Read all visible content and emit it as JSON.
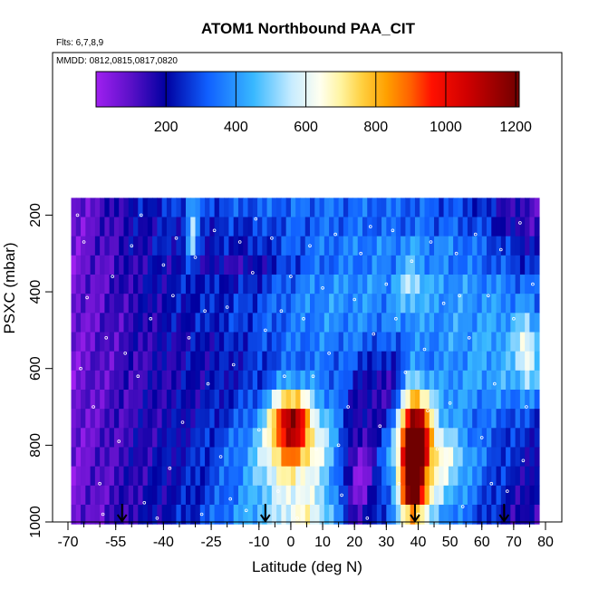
{
  "chart_data": {
    "type": "heatmap",
    "title": "ATOM1 Northbound PAA_CIT",
    "flights_label": "Flts: 6,7,8,9",
    "dates_label": "MMDD: 0812,0815,0817,0820",
    "xlabel": "Latitude (deg N)",
    "ylabel": "PSXC (mbar)",
    "xlim": [
      -70,
      80
    ],
    "ylim": [
      1000,
      140
    ],
    "y_reversed": true,
    "x_ticks": [
      -70,
      -55,
      -40,
      -25,
      -10,
      0,
      10,
      20,
      30,
      40,
      50,
      60,
      70,
      80
    ],
    "x_tick_labels": [
      "-70",
      "-55",
      "-40",
      "-25",
      "-10",
      "0",
      "10",
      "20",
      "30",
      "40",
      "50",
      "60",
      "70",
      "80"
    ],
    "x_minor_step": 5,
    "y_ticks": [
      200,
      400,
      600,
      800,
      1000
    ],
    "y_tick_labels": [
      "200",
      "400",
      "600",
      "800",
      "1000"
    ],
    "colorbar": {
      "range": [
        0,
        1210
      ],
      "ticks": [
        200,
        400,
        600,
        800,
        1000,
        1200
      ],
      "tick_labels": [
        "200",
        "400",
        "600",
        "800",
        "1000",
        "1200"
      ],
      "stops": [
        [
          0,
          "#a020f0"
        ],
        [
          100,
          "#5a10c8"
        ],
        [
          200,
          "#0000a0"
        ],
        [
          320,
          "#1060ff"
        ],
        [
          450,
          "#38b8ff"
        ],
        [
          560,
          "#c8ecff"
        ],
        [
          640,
          "#fffff0"
        ],
        [
          700,
          "#fff4a0"
        ],
        [
          760,
          "#ffd040"
        ],
        [
          830,
          "#ffa000"
        ],
        [
          900,
          "#ff6000"
        ],
        [
          960,
          "#ff1000"
        ],
        [
          1060,
          "#d00000"
        ],
        [
          1210,
          "#700000"
        ]
      ]
    },
    "bin_pressures": [
      180,
      230,
      280,
      330,
      380,
      430,
      480,
      530,
      580,
      630,
      680,
      730,
      780,
      830,
      880,
      930,
      980
    ],
    "lat_range": [
      -69,
      78
    ],
    "background_profile": {
      "lat": [
        -69,
        -60,
        -50,
        -40,
        -30,
        -20,
        -10,
        0,
        10,
        20,
        30,
        40,
        50,
        60,
        70,
        78
      ],
      "values": [
        [
          60,
          120,
          200,
          250,
          280,
          300,
          320,
          330,
          340,
          330,
          330,
          320,
          300,
          250,
          150,
          120
        ],
        [
          60,
          110,
          180,
          220,
          250,
          280,
          300,
          320,
          330,
          330,
          320,
          330,
          320,
          280,
          160,
          140
        ],
        [
          60,
          110,
          180,
          230,
          270,
          300,
          320,
          340,
          350,
          360,
          370,
          380,
          370,
          320,
          240,
          200
        ],
        [
          60,
          100,
          160,
          200,
          240,
          270,
          300,
          320,
          340,
          350,
          360,
          360,
          360,
          330,
          280,
          240
        ],
        [
          60,
          100,
          170,
          210,
          260,
          300,
          330,
          360,
          380,
          390,
          390,
          400,
          400,
          380,
          350,
          300
        ],
        [
          60,
          100,
          160,
          200,
          240,
          280,
          320,
          360,
          390,
          390,
          380,
          390,
          400,
          400,
          380,
          340
        ],
        [
          60,
          100,
          150,
          190,
          230,
          260,
          300,
          340,
          380,
          380,
          380,
          380,
          400,
          410,
          420,
          380
        ],
        [
          60,
          100,
          150,
          180,
          200,
          230,
          280,
          340,
          360,
          360,
          350,
          360,
          400,
          420,
          440,
          400
        ],
        [
          60,
          100,
          140,
          170,
          200,
          220,
          260,
          320,
          340,
          330,
          330,
          340,
          380,
          420,
          430,
          400
        ],
        [
          60,
          100,
          140,
          170,
          200,
          220,
          260,
          340,
          360,
          300,
          300,
          360,
          400,
          420,
          420,
          380
        ],
        [
          60,
          100,
          140,
          180,
          200,
          240,
          300,
          380,
          380,
          280,
          300,
          420,
          400,
          380,
          360,
          320
        ],
        [
          60,
          100,
          150,
          180,
          220,
          260,
          340,
          420,
          420,
          300,
          330,
          470,
          380,
          340,
          300,
          260
        ],
        [
          60,
          100,
          150,
          190,
          230,
          300,
          380,
          470,
          450,
          320,
          360,
          520,
          420,
          320,
          260,
          220
        ],
        [
          60,
          100,
          160,
          200,
          240,
          320,
          400,
          500,
          460,
          300,
          380,
          540,
          480,
          340,
          240,
          200
        ],
        [
          60,
          100,
          160,
          200,
          240,
          320,
          420,
          480,
          430,
          280,
          350,
          500,
          440,
          320,
          220,
          180
        ],
        [
          60,
          100,
          160,
          200,
          240,
          330,
          430,
          470,
          420,
          260,
          330,
          470,
          400,
          300,
          200,
          160
        ],
        [
          60,
          100,
          170,
          210,
          260,
          360,
          450,
          460,
          400,
          260,
          320,
          440,
          360,
          280,
          180,
          150
        ]
      ]
    },
    "plumes": [
      {
        "lat": 0,
        "p": 730,
        "amp": 620,
        "sx": 4.2,
        "sp": 50
      },
      {
        "lat": 0,
        "p": 820,
        "amp": 300,
        "sx": 7,
        "sp": 70
      },
      {
        "lat": 38,
        "p": 820,
        "amp": 780,
        "sx": 2.8,
        "sp": 110
      },
      {
        "lat": 41,
        "p": 760,
        "amp": 300,
        "sx": 3,
        "sp": 70
      },
      {
        "lat": 39,
        "p": 930,
        "amp": 300,
        "sx": 3,
        "sp": 40
      },
      {
        "lat": 45,
        "p": 850,
        "amp": 160,
        "sx": 6,
        "sp": 80
      },
      {
        "lat": -31,
        "p": 240,
        "amp": 300,
        "sx": 1.2,
        "sp": 60
      },
      {
        "lat": 38,
        "p": 380,
        "amp": 150,
        "sx": 3,
        "sp": 50
      },
      {
        "lat": 74,
        "p": 560,
        "amp": 250,
        "sx": 2,
        "sp": 60
      },
      {
        "lat": 5,
        "p": 980,
        "amp": 200,
        "sx": 6,
        "sp": 40
      }
    ],
    "lulls": [
      {
        "lat": 22,
        "p": 860,
        "amp": 260,
        "sx": 4,
        "sp": 100
      },
      {
        "lat": 30,
        "p": 650,
        "amp": 150,
        "sx": 6,
        "sp": 80
      },
      {
        "lat": -15,
        "p": 330,
        "amp": 120,
        "sx": 10,
        "sp": 60
      }
    ],
    "arrows_lat": [
      -53,
      -8,
      39,
      67
    ],
    "sample_points": [
      [
        -65,
        270
      ],
      [
        -64,
        415
      ],
      [
        -62,
        700
      ],
      [
        -60,
        900
      ],
      [
        -58,
        520
      ],
      [
        -56,
        360
      ],
      [
        -54,
        790
      ],
      [
        -52,
        560
      ],
      [
        -50,
        280
      ],
      [
        -48,
        620
      ],
      [
        -46,
        950
      ],
      [
        -44,
        470
      ],
      [
        -42,
        990
      ],
      [
        -40,
        330
      ],
      [
        -38,
        860
      ],
      [
        -36,
        260
      ],
      [
        -34,
        740
      ],
      [
        -32,
        520
      ],
      [
        -30,
        310
      ],
      [
        -28,
        980
      ],
      [
        -26,
        640
      ],
      [
        -24,
        240
      ],
      [
        -22,
        830
      ],
      [
        -20,
        440
      ],
      [
        -18,
        590
      ],
      [
        -16,
        270
      ],
      [
        -14,
        970
      ],
      [
        -12,
        350
      ],
      [
        -10,
        760
      ],
      [
        -8,
        500
      ],
      [
        -6,
        260
      ],
      [
        -4,
        920
      ],
      [
        -2,
        620
      ],
      [
        0,
        360
      ],
      [
        2,
        990
      ],
      [
        4,
        470
      ],
      [
        6,
        280
      ],
      [
        8,
        810
      ],
      [
        10,
        390
      ],
      [
        12,
        560
      ],
      [
        14,
        250
      ],
      [
        16,
        930
      ],
      [
        18,
        700
      ],
      [
        20,
        420
      ],
      [
        22,
        300
      ],
      [
        24,
        990
      ],
      [
        26,
        510
      ],
      [
        28,
        750
      ],
      [
        30,
        380
      ],
      [
        32,
        240
      ],
      [
        34,
        900
      ],
      [
        36,
        610
      ],
      [
        38,
        320
      ],
      [
        40,
        980
      ],
      [
        42,
        550
      ],
      [
        44,
        270
      ],
      [
        46,
        810
      ],
      [
        48,
        430
      ],
      [
        50,
        690
      ],
      [
        52,
        300
      ],
      [
        54,
        960
      ],
      [
        56,
        520
      ],
      [
        58,
        250
      ],
      [
        60,
        780
      ],
      [
        62,
        410
      ],
      [
        64,
        640
      ],
      [
        66,
        290
      ],
      [
        68,
        920
      ],
      [
        70,
        470
      ],
      [
        72,
        220
      ],
      [
        74,
        700
      ],
      [
        76,
        380
      ],
      [
        -67,
        200
      ],
      [
        -66,
        600
      ],
      [
        -59,
        980
      ],
      [
        -47,
        200
      ],
      [
        -37,
        410
      ],
      [
        -27,
        450
      ],
      [
        -19,
        940
      ],
      [
        -11,
        210
      ],
      [
        -3,
        450
      ],
      [
        7,
        620
      ],
      [
        15,
        800
      ],
      [
        25,
        230
      ],
      [
        33,
        470
      ],
      [
        43,
        710
      ],
      [
        53,
        410
      ],
      [
        63,
        900
      ],
      [
        73,
        840
      ]
    ]
  }
}
